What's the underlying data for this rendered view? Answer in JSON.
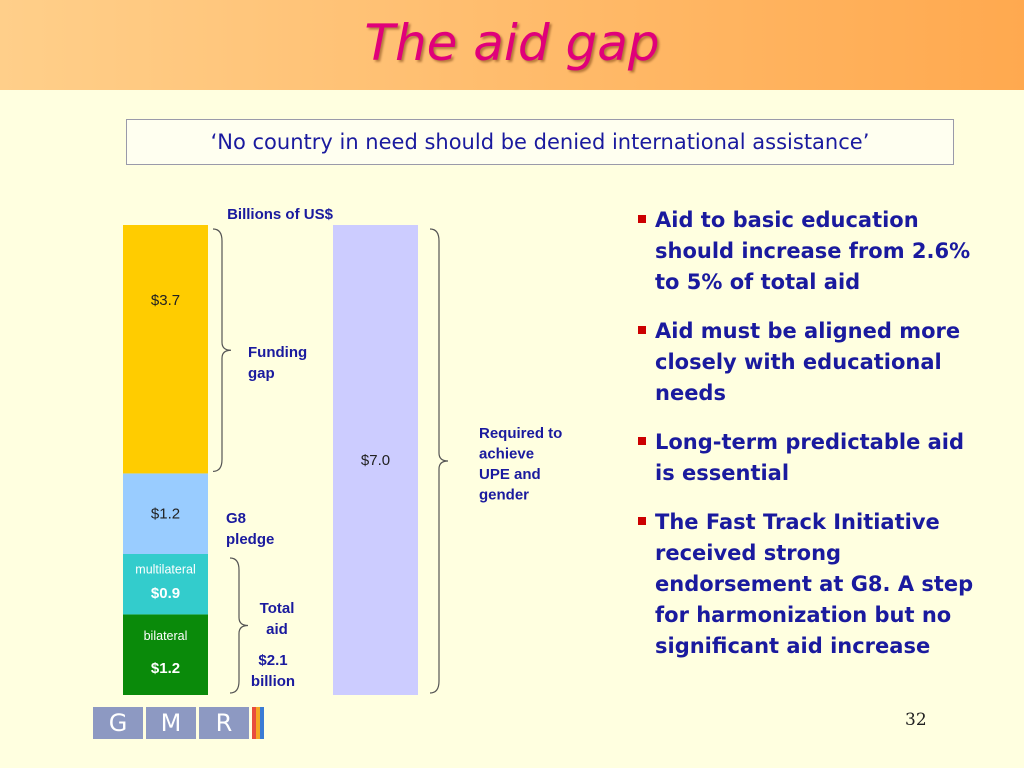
{
  "slide": {
    "title": "The aid gap",
    "quote": "‘No country in need should be denied international assistance’",
    "page_number": "32"
  },
  "bullets": [
    "Aid to basic education should increase from 2.6% to 5% of total aid",
    "Aid must be aligned more closely with educational needs",
    "Long-term predictable aid is essential",
    "The Fast Track Initiative received strong endorsement at G8. A step for harmonization but no significant aid increase"
  ],
  "logo": {
    "letters": [
      "G",
      "M",
      "R"
    ],
    "stripe_colors": [
      "#e84c3d",
      "#f5a623",
      "#3a7bd5"
    ]
  },
  "chart_data": {
    "type": "bar",
    "units_label": "Billions of US$",
    "ylim": [
      0,
      7.0
    ],
    "bars": [
      {
        "segments": [
          {
            "name": "bilateral",
            "value": 1.2,
            "label": "$1.2",
            "color": "#0a8a0a",
            "text_color": "#ffffff"
          },
          {
            "name": "multilateral",
            "value": 0.9,
            "label": "$0.9",
            "color": "#33cccc",
            "text_color": "#ffffff"
          },
          {
            "name": "G8 pledge",
            "value": 1.2,
            "label": "$1.2",
            "color": "#99ccff",
            "text_color": "#222222"
          },
          {
            "name": "Funding gap",
            "value": 3.7,
            "label": "$3.7",
            "color": "#ffcc00",
            "text_color": "#222222"
          }
        ]
      },
      {
        "segments": [
          {
            "name": "Required to achieve UPE and gender",
            "value": 7.0,
            "label": "$7.0",
            "color": "#ccccff",
            "text_color": "#222222"
          }
        ]
      }
    ],
    "annotations": {
      "funding_gap": "Funding gap",
      "g8_pledge": "G8 pledge",
      "total_aid": "Total aid",
      "total_aid_value": "$2.1 billion",
      "required": "Required to achieve UPE and gender"
    },
    "label_color": "#1a1a9e"
  }
}
